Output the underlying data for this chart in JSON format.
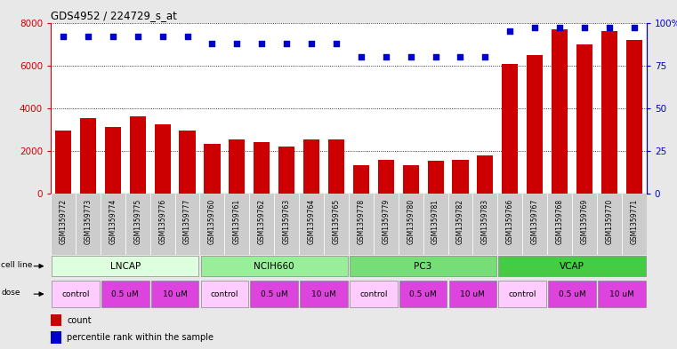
{
  "title": "GDS4952 / 224729_s_at",
  "samples": [
    "GSM1359772",
    "GSM1359773",
    "GSM1359774",
    "GSM1359775",
    "GSM1359776",
    "GSM1359777",
    "GSM1359760",
    "GSM1359761",
    "GSM1359762",
    "GSM1359763",
    "GSM1359764",
    "GSM1359765",
    "GSM1359778",
    "GSM1359779",
    "GSM1359780",
    "GSM1359781",
    "GSM1359782",
    "GSM1359783",
    "GSM1359766",
    "GSM1359767",
    "GSM1359768",
    "GSM1359769",
    "GSM1359770",
    "GSM1359771"
  ],
  "counts": [
    2950,
    3550,
    3100,
    3600,
    3250,
    2950,
    2350,
    2550,
    2400,
    2200,
    2550,
    2550,
    1350,
    1600,
    1350,
    1550,
    1600,
    1800,
    6050,
    6500,
    7700,
    7000,
    7600,
    7200
  ],
  "percentile_ranks": [
    92,
    92,
    92,
    92,
    92,
    92,
    88,
    88,
    88,
    88,
    88,
    88,
    80,
    80,
    80,
    80,
    80,
    80,
    95,
    97,
    97,
    97,
    97,
    97
  ],
  "bar_color": "#cc0000",
  "dot_color": "#0000cc",
  "ylim_left": [
    0,
    8000
  ],
  "ylim_right": [
    0,
    100
  ],
  "yticks_left": [
    0,
    2000,
    4000,
    6000,
    8000
  ],
  "yticks_right": [
    0,
    25,
    50,
    75,
    100
  ],
  "cell_lines": [
    {
      "label": "LNCAP",
      "start": 0,
      "end": 6,
      "color": "#ddffdd"
    },
    {
      "label": "NCIH660",
      "start": 6,
      "end": 12,
      "color": "#99ee99"
    },
    {
      "label": "PC3",
      "start": 12,
      "end": 18,
      "color": "#77dd77"
    },
    {
      "label": "VCAP",
      "start": 18,
      "end": 24,
      "color": "#44cc44"
    }
  ],
  "doses": [
    {
      "label": "control",
      "start": 0,
      "end": 2,
      "color": "#ffccff"
    },
    {
      "label": "0.5 uM",
      "start": 2,
      "end": 4,
      "color": "#dd44dd"
    },
    {
      "label": "10 uM",
      "start": 4,
      "end": 6,
      "color": "#dd44dd"
    },
    {
      "label": "control",
      "start": 6,
      "end": 8,
      "color": "#ffccff"
    },
    {
      "label": "0.5 uM",
      "start": 8,
      "end": 10,
      "color": "#dd44dd"
    },
    {
      "label": "10 uM",
      "start": 10,
      "end": 12,
      "color": "#dd44dd"
    },
    {
      "label": "control",
      "start": 12,
      "end": 14,
      "color": "#ffccff"
    },
    {
      "label": "0.5 uM",
      "start": 14,
      "end": 16,
      "color": "#dd44dd"
    },
    {
      "label": "10 uM",
      "start": 16,
      "end": 18,
      "color": "#dd44dd"
    },
    {
      "label": "control",
      "start": 18,
      "end": 20,
      "color": "#ffccff"
    },
    {
      "label": "0.5 uM",
      "start": 20,
      "end": 22,
      "color": "#dd44dd"
    },
    {
      "label": "10 uM",
      "start": 22,
      "end": 24,
      "color": "#dd44dd"
    }
  ],
  "legend_count_color": "#cc0000",
  "legend_dot_color": "#0000cc",
  "cell_line_label": "cell line",
  "dose_label": "dose",
  "background_color": "#e8e8e8",
  "plot_bg_color": "#ffffff",
  "xtick_bg_color": "#d0d0d0"
}
